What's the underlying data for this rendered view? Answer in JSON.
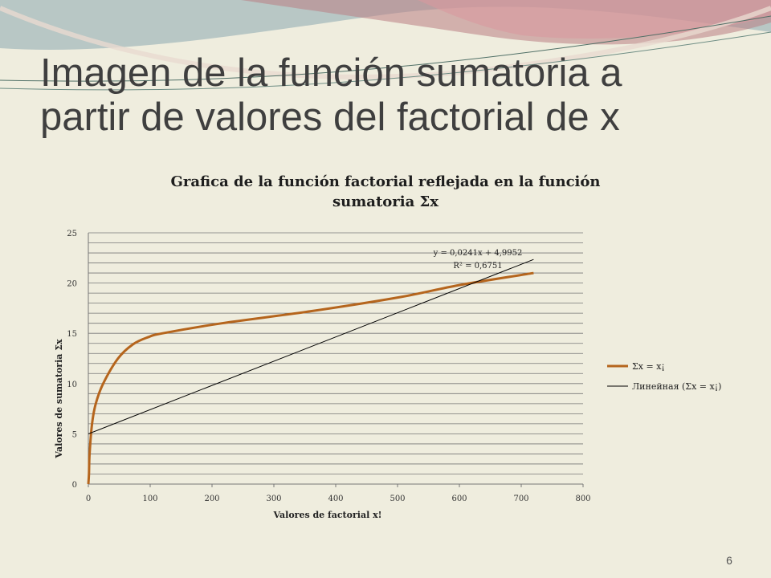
{
  "slide": {
    "title_line1": "Imagen de la función sumatoria a",
    "title_line2": "partir de valores del factorial de x",
    "page_number": "6"
  },
  "chart_data": {
    "type": "line",
    "title": "Grafica de la función factorial reflejada en la función sumatoria Σx",
    "title_line1": "Grafica de la función factorial reflejada en la función",
    "title_line2": "sumatoria Σx",
    "xlabel": "Valores de factorial x!",
    "ylabel": "Valores de sumatoria Σx",
    "xlim": [
      0,
      800
    ],
    "ylim": [
      0,
      25
    ],
    "x_ticks": [
      "0",
      "100",
      "200",
      "300",
      "400",
      "500",
      "600",
      "700",
      "800"
    ],
    "y_ticks": [
      "0",
      "5",
      "10",
      "15",
      "20",
      "25"
    ],
    "grid": "horizontal major and minor gridlines",
    "legend_position": "right",
    "series": [
      {
        "name": "Σx = x¡",
        "color": "#b5651d",
        "x": [
          0,
          1,
          2,
          6,
          12,
          24,
          48,
          72,
          96,
          120,
          216,
          360,
          504,
          600,
          720
        ],
        "y": [
          0,
          1,
          3,
          6,
          8,
          10,
          12.5,
          13.9,
          14.6,
          15.0,
          16.0,
          17.2,
          18.6,
          19.8,
          21
        ]
      },
      {
        "name": "Линейная (Σx = x¡)",
        "color": "#000000",
        "type": "trendline-linear",
        "slope": 0.0241,
        "intercept": 4.9952,
        "x_range": [
          0,
          720
        ]
      }
    ],
    "annotations": [
      "y = 0,0241x + 4,9952",
      "R² = 0,6751"
    ]
  }
}
